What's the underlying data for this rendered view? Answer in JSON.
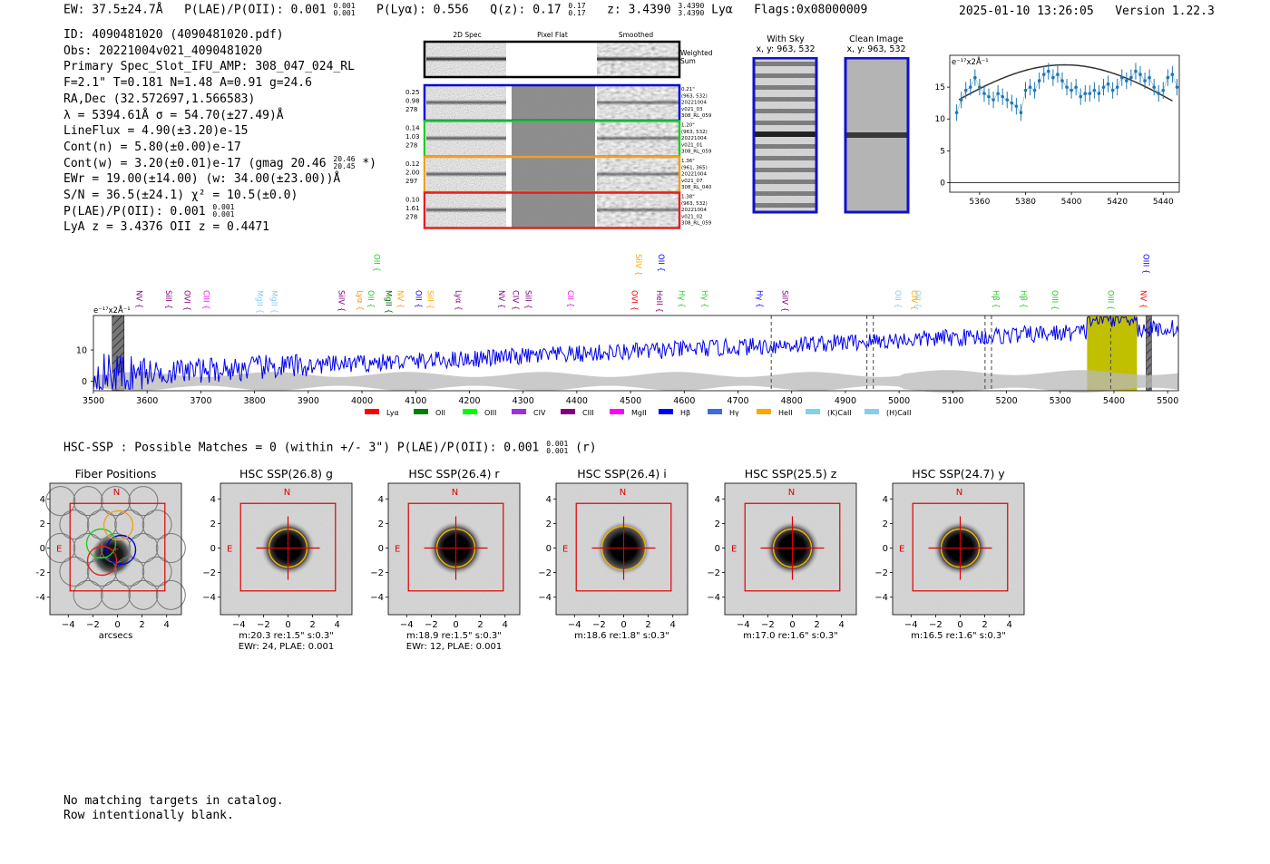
{
  "header": {
    "ew": "EW: 37.5±24.7Å",
    "plae": "P(LAE)/P(OII): 0.001",
    "plae_hi": "0.001",
    "plae_lo": "0.001",
    "plya": "P(Lyα): 0.556",
    "qz": "Q(z): 0.17",
    "qz_hi": "0.17",
    "qz_lo": "0.17",
    "z": "z: 3.4390",
    "z_hi": "3.4390",
    "z_lo": "3.4390",
    "line": "Lyα",
    "flags": "Flags:0x08000009",
    "timestamp": "2025-01-10 13:26:05",
    "version": "Version 1.22.3"
  },
  "info": {
    "id": "ID: 4090481020 (4090481020.pdf)",
    "obs": "Obs: 20221004v021_4090481020",
    "primary": "Primary Spec_Slot_IFU_AMP: 308_047_024_RL",
    "fit": "F=2.1\"  T=0.181  N=1.48  A=0.91  g=24.6",
    "radec": "RA,Dec (32.572697,1.566583)",
    "lambda": "λ = 5394.61Å  σ = 54.70(±27.49)Å",
    "lineflux": "LineFlux = 4.90(±3.20)e-15",
    "contn": "Cont(n) = 5.80(±0.00)e-17",
    "contw": "Cont(w) = 3.20(±0.01)e-17 (gmag 20.46",
    "contw_hi": "20.46",
    "contw_lo": "20.45",
    "contw_end": "*)",
    "ewr": "EWr = 19.00(±14.00) (w: 34.00(±23.00))Å",
    "sn": "S/N = 36.5(±24.1)  χ² = 10.5(±0.0)",
    "plae": "P(LAE)/P(OII): 0.001",
    "plae_hi": "0.001",
    "plae_lo": "0.001",
    "lya": "LyA z = 3.4376  OII z = 0.4471"
  },
  "cutouts": {
    "col_titles": [
      "2D Spec",
      "Pixel Flat",
      "Smoothed"
    ],
    "weighted_sum": [
      "Weighted",
      "Sum"
    ],
    "rows": [
      {
        "color": "#0000dd",
        "vals": [
          "0.25",
          "0.98",
          "278"
        ],
        "meta": [
          "0.21\"",
          "(963, 532)",
          "20221004",
          "v021_03",
          "308_RL_059"
        ]
      },
      {
        "color": "#22cc22",
        "vals": [
          "0.14",
          "1.03",
          "278"
        ],
        "meta": [
          "1.20\"",
          "(963, 532)",
          "20221004",
          "v021_01",
          "308_RL_059"
        ]
      },
      {
        "color": "#f0a020",
        "vals": [
          "0.12",
          "2.00",
          "297"
        ],
        "meta": [
          "1.36\"",
          "(961, 365)",
          "20221004",
          "v021_07",
          "308_RL_040"
        ]
      },
      {
        "color": "#dd2222",
        "vals": [
          "0.10",
          "1.61",
          "278"
        ],
        "meta": [
          "1.38\"",
          "(963, 532)",
          "20221004",
          "v021_02",
          "308_RL_059"
        ]
      }
    ]
  },
  "sky": {
    "with_sky": "With Sky",
    "with_sky_xy": "x, y: 963, 532",
    "clean": "Clean Image",
    "clean_xy": "x, y: 963, 532"
  },
  "zoom_chart": {
    "type": "scatter",
    "title": "e⁻¹⁷x2Å⁻¹",
    "xlim": [
      5347,
      5447
    ],
    "ylim": [
      -1.5,
      20
    ],
    "xticks": [
      5360,
      5380,
      5400,
      5420,
      5440
    ],
    "yticks": [
      0,
      5,
      10,
      15
    ],
    "x": [
      5350,
      5352,
      5354,
      5356,
      5358,
      5360,
      5362,
      5364,
      5366,
      5368,
      5370,
      5372,
      5374,
      5376,
      5378,
      5380,
      5382,
      5384,
      5386,
      5388,
      5390,
      5392,
      5394,
      5396,
      5398,
      5400,
      5402,
      5404,
      5406,
      5408,
      5410,
      5412,
      5414,
      5416,
      5418,
      5420,
      5422,
      5424,
      5426,
      5428,
      5430,
      5432,
      5434,
      5436,
      5438,
      5440,
      5442,
      5444,
      5446
    ],
    "y": [
      11,
      13,
      14.5,
      15,
      16.5,
      15,
      14,
      13.5,
      13,
      14,
      13.5,
      13,
      12.5,
      12,
      11,
      14.5,
      15,
      14.5,
      16,
      17,
      17.5,
      16.5,
      17,
      16,
      15,
      14.5,
      15,
      13.5,
      14,
      14,
      14.5,
      14,
      15,
      15.5,
      14.5,
      15,
      16.5,
      16,
      16.5,
      17.5,
      17,
      16,
      16.5,
      15,
      14,
      14.5,
      16.5,
      17,
      15
    ],
    "model_peak": 18.5,
    "model_center": 5397,
    "model_sigma": 55
  },
  "spectrum": {
    "type": "line",
    "title": "e⁻¹⁷x2Å⁻¹",
    "xlim": [
      3500,
      5520
    ],
    "ylim": [
      -3,
      21
    ],
    "xticks": [
      3500,
      3600,
      3700,
      3800,
      3900,
      4000,
      4100,
      4200,
      4300,
      4400,
      4500,
      4600,
      4700,
      4800,
      4900,
      5000,
      5100,
      5200,
      5300,
      5400,
      5500
    ],
    "yticks": [
      0,
      10
    ],
    "highlight": [
      5350,
      5443
    ],
    "dashed": [
      4762,
      4940,
      4952,
      5160,
      5172,
      5394
    ],
    "hatched": [
      [
        3535,
        3557
      ],
      [
        5460,
        5470
      ]
    ],
    "lines_row1": [
      {
        "name": "NV",
        "x": 3575,
        "color": "#800080"
      },
      {
        "name": "SiII",
        "x": 3630,
        "color": "#800080"
      },
      {
        "name": "OVI",
        "x": 3665,
        "color": "#800080"
      },
      {
        "name": "CIII",
        "x": 3700,
        "color": "#ff00ff"
      },
      {
        "name": "MgII",
        "x": 3800,
        "color": "#87ceeb"
      },
      {
        "name": "MgII",
        "x": 3827,
        "color": "#87ceeb"
      },
      {
        "name": "SiIV",
        "x": 3952,
        "color": "#800080"
      },
      {
        "name": "Lyα",
        "x": 3986,
        "color": "#ff8c00"
      },
      {
        "name": "OII",
        "x": 4007,
        "color": "#22cc22"
      },
      {
        "name": "MgII",
        "x": 4040,
        "color": "#006400"
      },
      {
        "name": "NV",
        "x": 4062,
        "color": "#ffa500"
      },
      {
        "name": "OII",
        "x": 4095,
        "color": "#0000ff"
      },
      {
        "name": "SiII",
        "x": 4117,
        "color": "#ffa500"
      },
      {
        "name": "Lyα",
        "x": 4170,
        "color": "#800080"
      },
      {
        "name": "NV",
        "x": 4250,
        "color": "#800080"
      },
      {
        "name": "CIV",
        "x": 4276,
        "color": "#800080"
      },
      {
        "name": "SiII",
        "x": 4300,
        "color": "#800080"
      },
      {
        "name": "CII",
        "x": 4378,
        "color": "#ff00ff"
      },
      {
        "name": "OVI",
        "x": 4497,
        "color": "#ff0000"
      },
      {
        "name": "HeII",
        "x": 4544,
        "color": "#800080"
      },
      {
        "name": "Hγ",
        "x": 4585,
        "color": "#22cc22"
      },
      {
        "name": "Hγ",
        "x": 4628,
        "color": "#22cc22"
      },
      {
        "name": "Hγ",
        "x": 4730,
        "color": "#0000ff"
      },
      {
        "name": "SiIV",
        "x": 4778,
        "color": "#800080"
      },
      {
        "name": "OII",
        "x": 4988,
        "color": "#87ceeb"
      },
      {
        "name": "CIV",
        "x": 5018,
        "color": "#ffa500"
      },
      {
        "name": "OII",
        "x": 5025,
        "color": "#87ceeb"
      },
      {
        "name": "Hβ",
        "x": 5170,
        "color": "#22cc22"
      },
      {
        "name": "Hβ",
        "x": 5222,
        "color": "#22cc22"
      },
      {
        "name": "OIII",
        "x": 5280,
        "color": "#22cc22"
      },
      {
        "name": "OIII",
        "x": 5384,
        "color": "#22cc22"
      },
      {
        "name": "NV",
        "x": 5445,
        "color": "#ff0000"
      }
    ],
    "lines_row2": [
      {
        "name": "OII",
        "x": 4018,
        "color": "#22cc22"
      },
      {
        "name": "SiIV",
        "x": 4505,
        "color": "#ffa500"
      },
      {
        "name": "OII",
        "x": 4547,
        "color": "#0000ff"
      },
      {
        "name": "OIII",
        "x": 5450,
        "color": "#0000ff"
      }
    ],
    "legend": [
      {
        "label": "Lyα",
        "color": "#ff0000"
      },
      {
        "label": "OII",
        "color": "#008000"
      },
      {
        "label": "OIII",
        "color": "#00ff00"
      },
      {
        "label": "CIV",
        "color": "#9a30e0"
      },
      {
        "label": "CIII",
        "color": "#800080"
      },
      {
        "label": "MgII",
        "color": "#ff00ff"
      },
      {
        "label": "Hβ",
        "color": "#0000ff"
      },
      {
        "label": "Hγ",
        "color": "#4169e1"
      },
      {
        "label": "HeII",
        "color": "#ffa500"
      },
      {
        "label": "(K)CaII",
        "color": "#87ceeb"
      },
      {
        "label": "(H)CaII",
        "color": "#87ceeb"
      }
    ]
  },
  "hsc": {
    "summary": "HSC-SSP : Possible Matches = 0 (within +/- 3\")  P(LAE)/P(OII): 0.001",
    "summary_hi": "0.001",
    "summary_lo": "0.001",
    "summary_end": "(r)",
    "axis_ticks": [
      "−4",
      "−2",
      "0",
      "2",
      "4"
    ],
    "n_label": "N",
    "e_label": "E",
    "panels": [
      {
        "title": "Fiber Positions",
        "lines": [
          "arcsecs"
        ]
      },
      {
        "title": "HSC SSP(26.8) g",
        "lines": [
          "m:20.3  re:1.5\"  s:0.3\"",
          "EWr: 24, PLAE: 0.001"
        ]
      },
      {
        "title": "HSC SSP(26.4) r",
        "lines": [
          "m:18.9  re:1.5\"  s:0.3\"",
          "EWr: 12, PLAE: 0.001"
        ]
      },
      {
        "title": "HSC SSP(26.4) i",
        "lines": [
          "m:18.6  re:1.8\"  s:0.3\""
        ]
      },
      {
        "title": "HSC SSP(25.5) z",
        "lines": [
          "m:17.0  re:1.6\"  s:0.3\""
        ]
      },
      {
        "title": "HSC SSP(24.7) y",
        "lines": [
          "m:16.5  re:1.6\"  s:0.3\""
        ]
      }
    ]
  },
  "footer": {
    "line1": "No matching targets in catalog.",
    "line2": "Row intentionally blank."
  }
}
